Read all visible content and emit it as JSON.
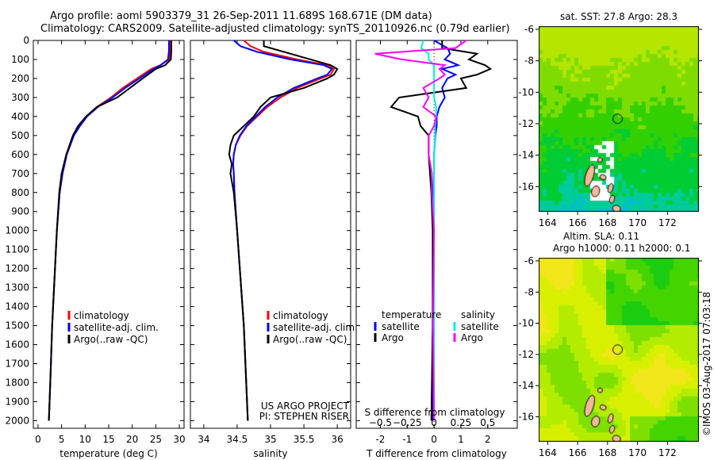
{
  "title": {
    "line1": "Argo profile: aoml 5903379_31 26-Sep-2011 11.689S 168.671E (DM data)",
    "line2": "Climatology: CARS2009. Satellite-adjusted climatology: synTS_20110926.nc (0.79d earlier)"
  },
  "colors": {
    "clim": "#ff0000",
    "sat": "#0000ff",
    "argo": "#000000",
    "sat_s": "#00eeee",
    "argo_s": "#ff00ff"
  },
  "chart_data": [
    {
      "type": "line",
      "name": "temperature-profile",
      "xlabel": "temperature (deg C)",
      "xlim": [
        -1,
        31
      ],
      "ylim": [
        2050,
        0
      ],
      "xticks": [
        "0",
        "5",
        "10",
        "15",
        "20",
        "25",
        "30"
      ],
      "yticks": [
        "0",
        "100",
        "200",
        "300",
        "400",
        "500",
        "600",
        "700",
        "800",
        "900",
        "1000",
        "1100",
        "1200",
        "1300",
        "1400",
        "1500",
        "1600",
        "1700",
        "1800",
        "1900",
        "2000"
      ],
      "legend": [
        "climatology",
        "satellite-adj. clim.",
        "Argo(..raw -QC)"
      ],
      "depth": [
        0,
        50,
        100,
        130,
        150,
        200,
        250,
        300,
        350,
        400,
        450,
        500,
        600,
        700,
        800,
        1000,
        1200,
        1500,
        1800,
        2000
      ],
      "series": [
        {
          "name": "climatology",
          "values": [
            28,
            28,
            27.9,
            26,
            24,
            21,
            18,
            15.5,
            12.5,
            10.3,
            8.8,
            7.6,
            6.1,
            5.2,
            4.6,
            4.0,
            3.6,
            3.0,
            2.6,
            2.3
          ]
        },
        {
          "name": "satellite-adj. clim.",
          "values": [
            27.8,
            27.8,
            27.6,
            26,
            24.5,
            21.5,
            18.5,
            15.8,
            12.7,
            10.4,
            8.9,
            7.6,
            6.1,
            5.2,
            4.6,
            4.0,
            3.6,
            3.0,
            2.6,
            2.3
          ]
        },
        {
          "name": "Argo(..raw -QC)",
          "values": [
            28.3,
            28.3,
            28.2,
            27,
            25,
            22.2,
            19.5,
            16.8,
            12.5,
            10.2,
            8.5,
            7.4,
            6.0,
            5.0,
            4.5,
            4.0,
            3.6,
            3.0,
            2.6,
            2.3
          ]
        }
      ]
    },
    {
      "type": "line",
      "name": "salinity-profile",
      "xlabel": "salinity",
      "xlim": [
        33.8,
        36.2
      ],
      "ylim": [
        2050,
        0
      ],
      "xticks": [
        "34",
        "34.5",
        "35",
        "35.5",
        "36"
      ],
      "legend": [
        "climatology",
        "satellite-adj. clim.",
        "Argo(..raw -QC)"
      ],
      "annotation": [
        "US ARGO PROJECT",
        "PI: STEPHEN RISER"
      ],
      "depth": [
        0,
        30,
        60,
        100,
        130,
        150,
        180,
        200,
        250,
        300,
        350,
        400,
        450,
        500,
        550,
        600,
        650,
        700,
        800,
        1000,
        1500,
        2000
      ],
      "series": [
        {
          "name": "climatology",
          "values": [
            34.6,
            34.7,
            34.9,
            35.4,
            35.85,
            35.95,
            35.9,
            35.75,
            35.4,
            35.15,
            34.95,
            34.8,
            34.65,
            34.55,
            34.48,
            34.45,
            34.44,
            34.45,
            34.46,
            34.5,
            34.6,
            34.66
          ]
        },
        {
          "name": "satellite-adj. clim.",
          "values": [
            34.45,
            34.55,
            34.8,
            35.3,
            35.8,
            35.92,
            35.85,
            35.7,
            35.35,
            35.1,
            34.92,
            34.78,
            34.64,
            34.54,
            34.48,
            34.45,
            34.44,
            34.45,
            34.46,
            34.5,
            34.6,
            34.66
          ]
        },
        {
          "name": "Argo(..raw -QC)",
          "values": [
            34.9,
            34.9,
            35.2,
            35.6,
            35.9,
            36.0,
            35.95,
            35.85,
            35.5,
            35.0,
            34.85,
            34.75,
            34.6,
            34.45,
            34.4,
            34.38,
            34.42,
            34.4,
            34.45,
            34.5,
            34.6,
            34.66
          ]
        }
      ]
    },
    {
      "type": "line",
      "name": "difference-profile",
      "xlabel": "T difference from climatology",
      "xlabel2": "S difference from climatology",
      "xlim": [
        -2.9,
        3.1
      ],
      "x2lim": [
        -0.725,
        0.775
      ],
      "ylim": [
        2050,
        0
      ],
      "xticks": [
        "-2",
        "-1",
        "0",
        "1",
        "2"
      ],
      "x2ticks": [
        "-0.5",
        "-0.25",
        "0",
        "0.25",
        "0.5"
      ],
      "legend_t": {
        "title": "temperature",
        "items": [
          "satellite",
          "Argo"
        ]
      },
      "legend_s": {
        "title": "salinity",
        "items": [
          "satellite",
          "Argo"
        ]
      },
      "depth": [
        0,
        40,
        70,
        100,
        130,
        150,
        180,
        200,
        250,
        300,
        350,
        400,
        450,
        500,
        600,
        700,
        800,
        1000,
        1500,
        2000
      ],
      "series": [
        {
          "name": "T satellite",
          "axis": "T",
          "values": [
            0,
            0.5,
            0.6,
            0.4,
            0.9,
            0.3,
            0.8,
            0.5,
            0.3,
            0.4,
            0.2,
            0.1,
            0.1,
            0.05,
            0.0,
            0.0,
            -0.03,
            -0.02,
            -0.05,
            -0.05
          ]
        },
        {
          "name": "T Argo",
          "axis": "T",
          "values": [
            0.3,
            0.3,
            1.6,
            1.3,
            1.9,
            2.1,
            1.6,
            1.0,
            1.2,
            -1.3,
            -1.6,
            -0.6,
            -0.5,
            -0.2,
            -0.2,
            -0.15,
            -0.1,
            -0.05,
            -0.05,
            -0.1
          ]
        },
        {
          "name": "S satellite",
          "axis": "S",
          "values": [
            -0.1,
            -0.12,
            -0.05,
            -0.05,
            0.0,
            0.0,
            0.0,
            0.0,
            0.0,
            0.0,
            0.02,
            0.02,
            0.01,
            0.01,
            0.0,
            0.0,
            0.0,
            0.0,
            0.0,
            0.0
          ]
        },
        {
          "name": "S Argo",
          "axis": "S",
          "values": [
            0.3,
            0.2,
            -0.55,
            -0.3,
            0.1,
            0.05,
            0.1,
            0.05,
            -0.1,
            -0.05,
            -0.1,
            0.02,
            0.0,
            -0.05,
            -0.05,
            -0.02,
            -0.02,
            0.0,
            -0.01,
            0.0
          ]
        }
      ]
    },
    {
      "type": "heatmap",
      "name": "sst-map",
      "title": "sat. SST: 27.8 Argo: 28.3",
      "xticks": [
        "164",
        "166",
        "168",
        "170",
        "172"
      ],
      "yticks": [
        "-6",
        "-8",
        "-10",
        "-12",
        "-14",
        "-16"
      ],
      "xlim": [
        163.4,
        174.1
      ],
      "ylim": [
        -17.6,
        -5.8
      ],
      "marker": [
        168.671,
        -11.689
      ]
    },
    {
      "type": "heatmap",
      "name": "sla-map",
      "title": "Altim. SLA: 0.11",
      "subtitle": "Argo h1000: 0.11 h2000: 0.1",
      "xticks": [
        "164",
        "166",
        "168",
        "170",
        "172"
      ],
      "yticks": [
        "-6",
        "-8",
        "-10",
        "-12",
        "-14",
        "-16"
      ],
      "xlim": [
        163.4,
        174.1
      ],
      "ylim": [
        -17.6,
        -5.8
      ],
      "marker": [
        168.671,
        -11.689
      ]
    }
  ],
  "footer": {
    "credit": "©IMOS 03-Aug-2017 07:03:18"
  }
}
